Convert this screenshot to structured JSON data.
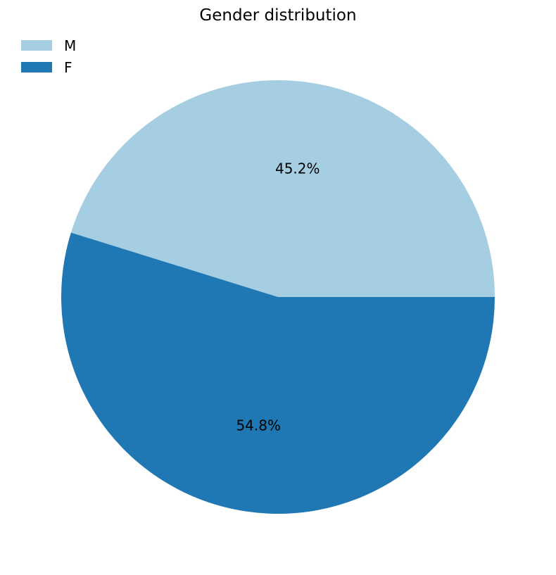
{
  "chart_data": {
    "type": "pie",
    "title": "Gender distribution",
    "slices": [
      {
        "label": "M",
        "value": 45.2,
        "display": "45.2%",
        "color": "#a6cee3"
      },
      {
        "label": "F",
        "value": 54.8,
        "display": "54.8%",
        "color": "#1f78b4"
      }
    ],
    "start_angle_deg": 0,
    "direction": "counterclockwise",
    "legend": {
      "placement": "top-left",
      "entries": [
        "M",
        "F"
      ]
    }
  }
}
